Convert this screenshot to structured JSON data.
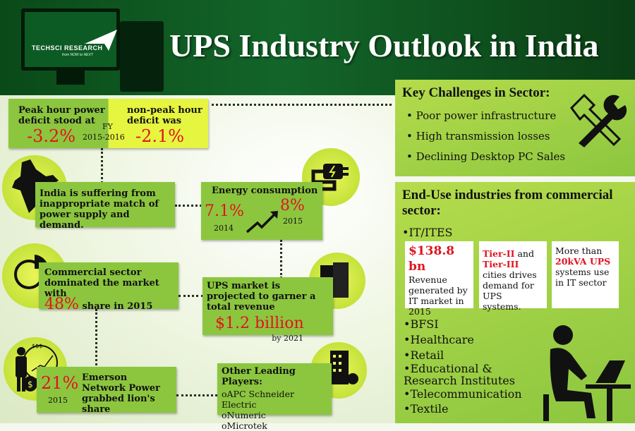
{
  "header": {
    "title": "UPS Industry Outlook in India",
    "logo_name": "TECHSCI RESEARCH",
    "logo_tagline": "from NOW to NEXT"
  },
  "deficit": {
    "peak_label": "Peak hour power deficit stood at",
    "peak_value": "-3.2%",
    "period_label": "FY",
    "period": "2015-2016",
    "nonpeak_label": "non-peak hour deficit was",
    "nonpeak_value": "-2.1%"
  },
  "mismatch": {
    "text": "India is suffering from inappropriate match of power supply and demand."
  },
  "energy": {
    "title": "Energy consumption",
    "value_2014": "7.1%",
    "year_2014": "2014",
    "value_2015": "8%",
    "year_2015": "2015"
  },
  "commercial": {
    "text": "Commercial sector dominated the market with",
    "value": "48%",
    "suffix": "share in 2015"
  },
  "revenue": {
    "text": "UPS market is projected to garner a total revenue",
    "value": "$1.2 billion",
    "year": "by 2021"
  },
  "emerson": {
    "value": "21%",
    "year": "2015",
    "text": "Emerson Network Power grabbed lion's share",
    "icon_text": "$$$"
  },
  "players": {
    "title": "Other Leading Players:",
    "items": [
      "oAPC Schneider Electric",
      "oNumeric",
      "oMicrotek"
    ]
  },
  "challenges": {
    "title": "Key Challenges in Sector:",
    "items": [
      "Poor power infrastructure",
      "High transmission losses",
      "Declining Desktop PC Sales"
    ]
  },
  "end_use": {
    "title": "End-Use industries from commercial sector:",
    "it_label": "•IT/ITES",
    "box1": {
      "value": "$138.8 bn",
      "text": "Revenue generated by IT market in 2015"
    },
    "box2": {
      "red1": "Tier-II",
      "t1": " and ",
      "red2": "Tier-III",
      "t2": " cities drives demand for UPS systems."
    },
    "box3": {
      "t1": "More than ",
      "red": "20kVA UPS",
      "t2": " systems use in IT sector"
    },
    "items": [
      "BFSI",
      "Healthcare",
      "Retail",
      "Educational & Research Institutes",
      "Telecommunication",
      "Textile"
    ]
  },
  "colors": {
    "header": "#0f5a22",
    "box_green": "#8cc63f",
    "box_yellow": "#e6f53f",
    "accent_red": "#e0141e"
  }
}
